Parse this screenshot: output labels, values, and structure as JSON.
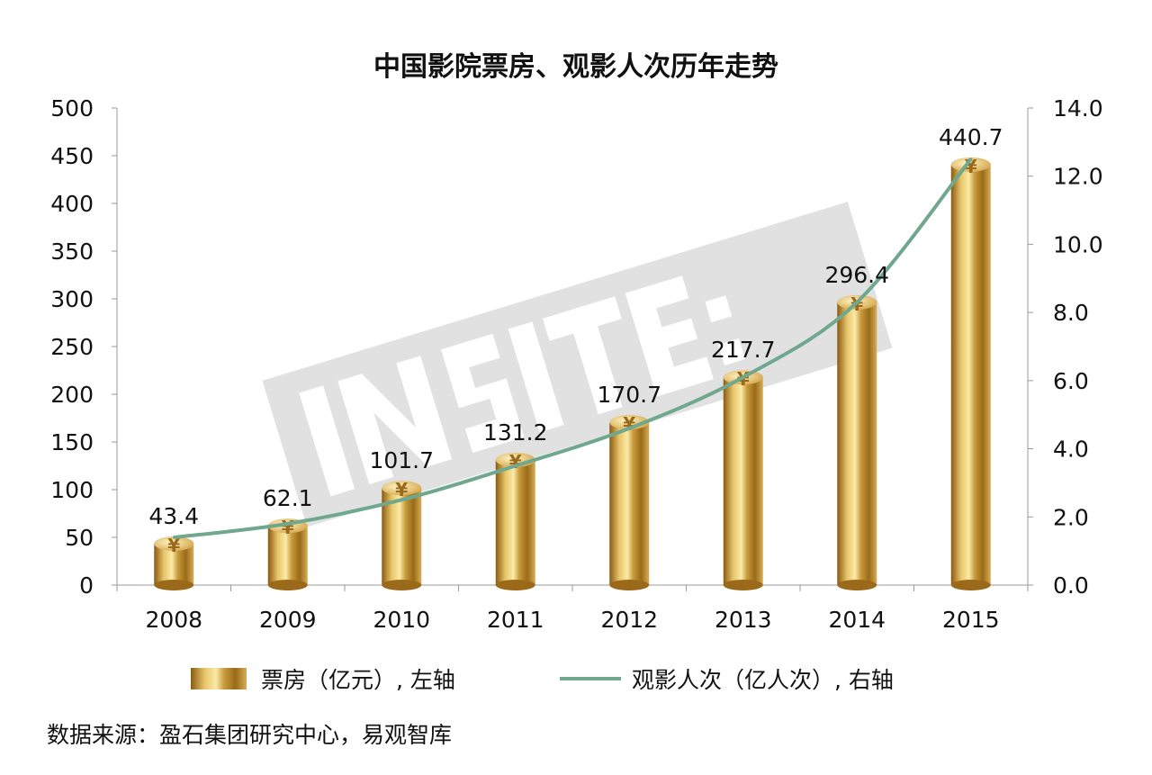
{
  "chart_data": {
    "type": "bar+line",
    "title": "中国影院票房、观影人次历年走势",
    "categories": [
      "2008",
      "2009",
      "2010",
      "2011",
      "2012",
      "2013",
      "2014",
      "2015"
    ],
    "series": [
      {
        "name": "票房（亿元）, 左轴",
        "type": "bar",
        "axis": "left",
        "values": [
          43.4,
          62.1,
          101.7,
          131.2,
          170.7,
          217.7,
          296.4,
          440.7
        ],
        "labels": [
          "43.4",
          "62.1",
          "101.7",
          "131.2",
          "170.7",
          "217.7",
          "296.4",
          "440.7"
        ]
      },
      {
        "name": "观影人次（亿人次）, 右轴",
        "type": "line",
        "axis": "right",
        "color": "#6fa88e",
        "values": [
          1.4,
          1.8,
          2.5,
          3.5,
          4.6,
          6.1,
          8.3,
          12.5
        ]
      }
    ],
    "left_axis": {
      "min": 0,
      "max": 500,
      "ticks": [
        "0",
        "50",
        "100",
        "150",
        "200",
        "250",
        "300",
        "350",
        "400",
        "450",
        "500"
      ]
    },
    "right_axis": {
      "min": 0,
      "max": 14,
      "ticks": [
        "0.0",
        "2.0",
        "4.0",
        "6.0",
        "8.0",
        "10.0",
        "12.0",
        "14.0"
      ]
    },
    "legend_position": "bottom",
    "bar_symbol": "¥",
    "source": "数据来源：盈石集团研究中心，易观智库",
    "watermark": "INSITE 盈石"
  }
}
